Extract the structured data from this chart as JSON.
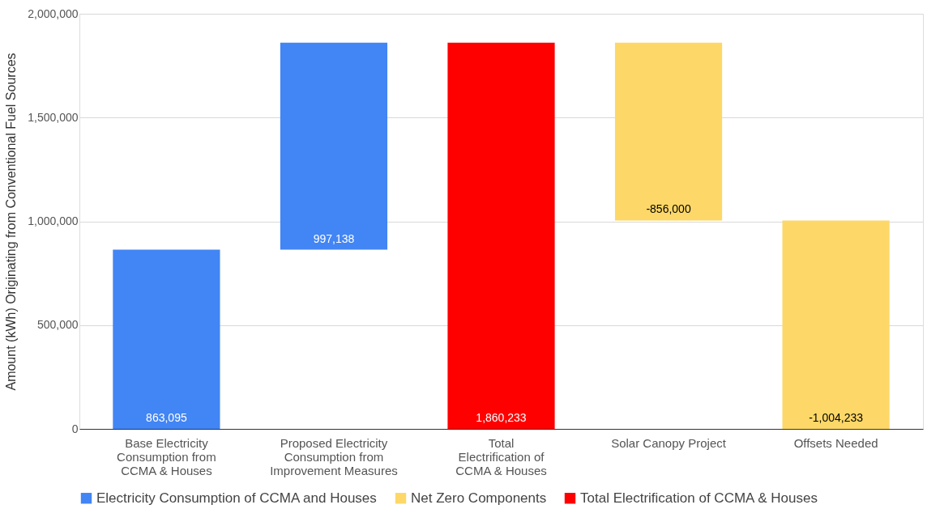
{
  "chart_data": {
    "type": "bar",
    "categories": [
      "Base Electricity Consumption from CCMA & Houses",
      "Proposed Electricity Consumption from Improvement Measures",
      "Total Electrification of CCMA & Houses",
      "Solar Canopy Project",
      "Offsets Needed"
    ],
    "series": [
      {
        "name": "Electricity Consumption of CCMA and Houses",
        "color": "#4285f4",
        "values": [
          863095,
          997138,
          null,
          null,
          null
        ],
        "base": [
          0,
          863095,
          null,
          null,
          null
        ],
        "value_labels": [
          "863,095",
          "997,138",
          null,
          null,
          null
        ]
      },
      {
        "name": "Net Zero Components",
        "color": "#fdd868",
        "values": [
          null,
          null,
          null,
          -856000,
          -1004233
        ],
        "base": [
          null,
          null,
          null,
          1860233,
          1004233
        ],
        "value_labels": [
          null,
          null,
          null,
          "-856,000",
          "-1,004,233"
        ]
      },
      {
        "name": "Total Electrification of CCMA & Houses",
        "color": "#ff0000",
        "values": [
          null,
          null,
          1860233,
          null,
          null
        ],
        "base": [
          null,
          null,
          0,
          null,
          null
        ],
        "value_labels": [
          null,
          null,
          "1,860,233",
          null,
          null
        ]
      }
    ],
    "ylabel": "Amount (kWh) Originating from Conventional Fuel Sources",
    "ylim": [
      0,
      2000000
    ],
    "yticks": [
      0,
      {
        "value": 500000,
        "label": "500,000"
      },
      {
        "value": 1000000,
        "label": "1,000,000"
      },
      {
        "value": 1500000,
        "label": "1,500,000"
      },
      {
        "value": 2000000,
        "label": "2,000,000"
      }
    ],
    "grid": "y",
    "legend": "bottom"
  }
}
